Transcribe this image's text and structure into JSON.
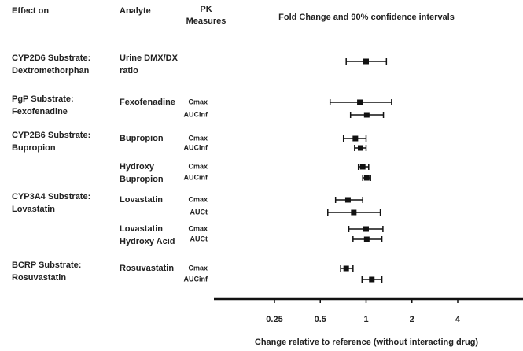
{
  "chart_data": {
    "type": "forest",
    "title": "Fold Change and 90% confidence intervals",
    "xlabel": "Change relative to reference (without interacting drug)",
    "headers": {
      "effect": "Effect on",
      "analyte": "Analyte",
      "pk": [
        "PK",
        "Measures"
      ]
    },
    "log_x": true,
    "color": "#111111",
    "xlim": [
      0.1,
      10
    ],
    "xticks": [
      0.25,
      0.5,
      1,
      2,
      4
    ],
    "groups": [
      {
        "effect": [
          "CYP2D6 Substrate:",
          "Dextromethorphan"
        ],
        "analytes": [
          {
            "name": [
              "Urine DMX/DX",
              "ratio"
            ],
            "measures": [
              {
                "value": 1.0,
                "low": 0.74,
                "high": 1.36
              }
            ]
          }
        ]
      },
      {
        "effect": [
          "PgP Substrate:",
          "Fexofenadine"
        ],
        "analytes": [
          {
            "name": [
              "Fexofenadine"
            ],
            "measures": [
              {
                "label": "Cmax",
                "value": 0.91,
                "low": 0.58,
                "high": 1.47
              },
              {
                "label": "AUCinf",
                "value": 1.01,
                "low": 0.79,
                "high": 1.3
              }
            ]
          }
        ]
      },
      {
        "effect": [
          "CYP2B6 Substrate:",
          "Bupropion"
        ],
        "analytes": [
          {
            "name": [
              "Bupropion"
            ],
            "measures": [
              {
                "label": "Cmax",
                "value": 0.85,
                "low": 0.71,
                "high": 1.0
              },
              {
                "label": "AUCinf",
                "value": 0.92,
                "low": 0.84,
                "high": 1.0
              }
            ]
          },
          {
            "name": [
              "Hydroxy",
              "Bupropion"
            ],
            "measures": [
              {
                "label": "Cmax",
                "value": 0.95,
                "low": 0.89,
                "high": 1.04
              },
              {
                "label": "AUCinf",
                "value": 1.01,
                "low": 0.95,
                "high": 1.07
              }
            ]
          }
        ]
      },
      {
        "effect": [
          "CYP3A4 Substrate:",
          "Lovastatin"
        ],
        "analytes": [
          {
            "name": [
              "Lovastatin"
            ],
            "measures": [
              {
                "label": "Cmax",
                "value": 0.76,
                "low": 0.63,
                "high": 0.95
              },
              {
                "label": "AUCt",
                "value": 0.83,
                "low": 0.56,
                "high": 1.24
              }
            ]
          },
          {
            "name": [
              "Lovastatin",
              "Hydroxy Acid"
            ],
            "measures": [
              {
                "label": "Cmax",
                "value": 1.0,
                "low": 0.77,
                "high": 1.29
              },
              {
                "label": "AUCt",
                "value": 1.01,
                "low": 0.82,
                "high": 1.27
              }
            ]
          }
        ]
      },
      {
        "effect": [
          "BCRP Substrate:",
          "Rosuvastatin"
        ],
        "analytes": [
          {
            "name": [
              "Rosuvastatin"
            ],
            "measures": [
              {
                "label": "Cmax",
                "value": 0.74,
                "low": 0.68,
                "high": 0.82
              },
              {
                "label": "AUCinf",
                "value": 1.09,
                "low": 0.94,
                "high": 1.27
              }
            ]
          }
        ]
      }
    ]
  }
}
